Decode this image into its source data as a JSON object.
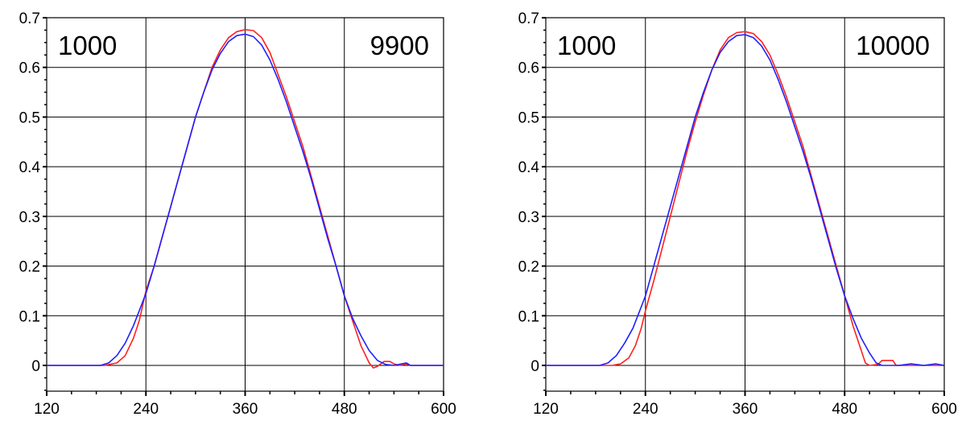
{
  "chart_data": [
    {
      "type": "line",
      "title": "",
      "xlabel": "",
      "ylabel": "",
      "xlim": [
        120,
        600
      ],
      "ylim": [
        -0.05,
        0.7
      ],
      "x_ticks": [
        "120",
        "240",
        "360",
        "480",
        "600"
      ],
      "y_ticks": [
        "0",
        "0.1",
        "0.2",
        "0.3",
        "0.4",
        "0.5",
        "0.6",
        "0.7"
      ],
      "grid": true,
      "annotations": [
        {
          "text": "1000",
          "position": "top-left"
        },
        {
          "text": "9900",
          "position": "top-right"
        }
      ],
      "series": [
        {
          "color": "#ff2020",
          "points": [
            [
              120,
              0
            ],
            [
              150,
              0
            ],
            [
              190,
              0
            ],
            [
              205,
              0.005
            ],
            [
              215,
              0.02
            ],
            [
              225,
              0.055
            ],
            [
              232,
              0.09
            ],
            [
              240,
              0.15
            ],
            [
              250,
              0.2
            ],
            [
              260,
              0.26
            ],
            [
              270,
              0.32
            ],
            [
              280,
              0.38
            ],
            [
              290,
              0.44
            ],
            [
              300,
              0.5
            ],
            [
              310,
              0.55
            ],
            [
              320,
              0.6
            ],
            [
              330,
              0.635
            ],
            [
              340,
              0.66
            ],
            [
              350,
              0.672
            ],
            [
              360,
              0.676
            ],
            [
              370,
              0.674
            ],
            [
              380,
              0.66
            ],
            [
              390,
              0.63
            ],
            [
              400,
              0.585
            ],
            [
              410,
              0.54
            ],
            [
              420,
              0.49
            ],
            [
              430,
              0.44
            ],
            [
              440,
              0.38
            ],
            [
              450,
              0.32
            ],
            [
              460,
              0.26
            ],
            [
              470,
              0.2
            ],
            [
              480,
              0.14
            ],
            [
              490,
              0.09
            ],
            [
              500,
              0.04
            ],
            [
              510,
              0.005
            ],
            [
              515,
              -0.005
            ],
            [
              520,
              -0.002
            ],
            [
              528,
              0.008
            ],
            [
              535,
              0.008
            ],
            [
              540,
              0.003
            ],
            [
              548,
              0
            ],
            [
              555,
              0.003
            ],
            [
              560,
              0
            ],
            [
              600,
              0
            ]
          ]
        },
        {
          "color": "#2020ff",
          "points": [
            [
              120,
              0
            ],
            [
              150,
              0
            ],
            [
              185,
              0
            ],
            [
              195,
              0.005
            ],
            [
              205,
              0.02
            ],
            [
              215,
              0.045
            ],
            [
              225,
              0.08
            ],
            [
              232,
              0.11
            ],
            [
              240,
              0.145
            ],
            [
              250,
              0.2
            ],
            [
              260,
              0.26
            ],
            [
              270,
              0.32
            ],
            [
              280,
              0.38
            ],
            [
              290,
              0.44
            ],
            [
              300,
              0.5
            ],
            [
              310,
              0.55
            ],
            [
              320,
              0.595
            ],
            [
              330,
              0.628
            ],
            [
              340,
              0.652
            ],
            [
              350,
              0.664
            ],
            [
              360,
              0.667
            ],
            [
              370,
              0.662
            ],
            [
              380,
              0.645
            ],
            [
              390,
              0.615
            ],
            [
              400,
              0.575
            ],
            [
              410,
              0.53
            ],
            [
              420,
              0.48
            ],
            [
              430,
              0.43
            ],
            [
              440,
              0.375
            ],
            [
              450,
              0.315
            ],
            [
              460,
              0.255
            ],
            [
              470,
              0.2
            ],
            [
              480,
              0.14
            ],
            [
              490,
              0.095
            ],
            [
              500,
              0.06
            ],
            [
              510,
              0.03
            ],
            [
              520,
              0.01
            ],
            [
              530,
              0.002
            ],
            [
              540,
              0
            ],
            [
              555,
              0.005
            ],
            [
              560,
              0
            ],
            [
              600,
              0
            ]
          ]
        }
      ]
    },
    {
      "type": "line",
      "title": "",
      "xlabel": "",
      "ylabel": "",
      "xlim": [
        120,
        600
      ],
      "ylim": [
        -0.05,
        0.7
      ],
      "x_ticks": [
        "120",
        "240",
        "360",
        "480",
        "600"
      ],
      "y_ticks": [
        "0",
        "0.1",
        "0.2",
        "0.3",
        "0.4",
        "0.5",
        "0.6",
        "0.7"
      ],
      "grid": true,
      "annotations": [
        {
          "text": "1000",
          "position": "top-left"
        },
        {
          "text": "10000",
          "position": "top-right"
        }
      ],
      "series": [
        {
          "color": "#ff2020",
          "points": [
            [
              120,
              0
            ],
            [
              150,
              0
            ],
            [
              200,
              0
            ],
            [
              210,
              0.003
            ],
            [
              220,
              0.015
            ],
            [
              228,
              0.04
            ],
            [
              235,
              0.075
            ],
            [
              240,
              0.11
            ],
            [
              250,
              0.17
            ],
            [
              260,
              0.235
            ],
            [
              270,
              0.3
            ],
            [
              280,
              0.365
            ],
            [
              290,
              0.43
            ],
            [
              300,
              0.49
            ],
            [
              310,
              0.545
            ],
            [
              320,
              0.595
            ],
            [
              330,
              0.635
            ],
            [
              340,
              0.66
            ],
            [
              350,
              0.67
            ],
            [
              360,
              0.672
            ],
            [
              370,
              0.668
            ],
            [
              380,
              0.652
            ],
            [
              390,
              0.625
            ],
            [
              400,
              0.585
            ],
            [
              410,
              0.54
            ],
            [
              420,
              0.49
            ],
            [
              430,
              0.44
            ],
            [
              440,
              0.38
            ],
            [
              450,
              0.32
            ],
            [
              460,
              0.26
            ],
            [
              470,
              0.2
            ],
            [
              480,
              0.14
            ],
            [
              490,
              0.08
            ],
            [
              500,
              0.03
            ],
            [
              505,
              0.005
            ],
            [
              510,
              0
            ],
            [
              520,
              0.002
            ],
            [
              525,
              0.01
            ],
            [
              533,
              0.01
            ],
            [
              538,
              0.01
            ],
            [
              542,
              0
            ],
            [
              600,
              0
            ]
          ]
        },
        {
          "color": "#2020ff",
          "points": [
            [
              120,
              0
            ],
            [
              150,
              0
            ],
            [
              185,
              0
            ],
            [
              195,
              0.005
            ],
            [
              205,
              0.02
            ],
            [
              215,
              0.045
            ],
            [
              225,
              0.075
            ],
            [
              232,
              0.105
            ],
            [
              240,
              0.14
            ],
            [
              250,
              0.2
            ],
            [
              260,
              0.26
            ],
            [
              270,
              0.32
            ],
            [
              280,
              0.38
            ],
            [
              290,
              0.44
            ],
            [
              300,
              0.5
            ],
            [
              310,
              0.55
            ],
            [
              320,
              0.595
            ],
            [
              330,
              0.63
            ],
            [
              340,
              0.652
            ],
            [
              350,
              0.664
            ],
            [
              360,
              0.666
            ],
            [
              370,
              0.66
            ],
            [
              380,
              0.643
            ],
            [
              390,
              0.615
            ],
            [
              400,
              0.575
            ],
            [
              410,
              0.53
            ],
            [
              420,
              0.48
            ],
            [
              430,
              0.43
            ],
            [
              440,
              0.375
            ],
            [
              450,
              0.315
            ],
            [
              460,
              0.255
            ],
            [
              470,
              0.195
            ],
            [
              480,
              0.14
            ],
            [
              490,
              0.095
            ],
            [
              500,
              0.055
            ],
            [
              510,
              0.025
            ],
            [
              518,
              0.005
            ],
            [
              525,
              0
            ],
            [
              545,
              0
            ],
            [
              560,
              0.003
            ],
            [
              575,
              0
            ],
            [
              590,
              0.003
            ],
            [
              600,
              0
            ]
          ]
        }
      ]
    }
  ]
}
